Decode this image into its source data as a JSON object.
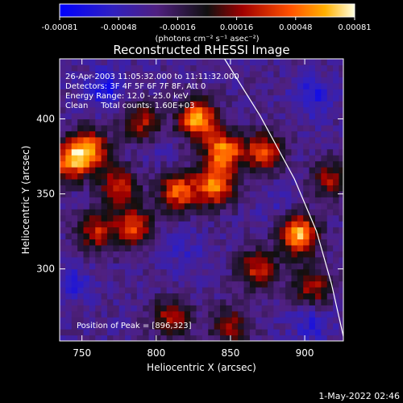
{
  "chart_data": {
    "type": "heatmap",
    "title": "Reconstructed RHESSI Image",
    "xlabel": "Heliocentric X (arcsec)",
    "ylabel": "Heliocentric Y (arcsec)",
    "xlim": [
      735,
      926
    ],
    "ylim": [
      252,
      440
    ],
    "x_ticks": [
      750,
      800,
      850,
      900
    ],
    "y_ticks": [
      300,
      350,
      400
    ],
    "colorbar": {
      "min": -0.00081,
      "max": 0.00081,
      "tick_labels": [
        "-0.00081",
        "-0.00048",
        "-0.00016",
        "0.00016",
        "0.00048",
        "0.00081"
      ],
      "units_label": "(photons cm⁻² s⁻¹ asec⁻²)"
    },
    "annotations": [
      "26-Apr-2003 11:05:32.000 to 11:11:32.000",
      "Detectors: 3F 4F 5F 6F 7F 8F, Att 0",
      "Energy Range: 12.0 - 25.0 keV",
      "Clean     Total counts: 1.60E+03"
    ],
    "peak_label": "Position of Peak = [896,323]",
    "peak": {
      "x": 896,
      "y": 323,
      "value": 0.00081
    },
    "bright_regions": [
      {
        "x": 896,
        "y": 323,
        "value": 0.00081
      },
      {
        "x": 828,
        "y": 400,
        "value": 0.00074
      },
      {
        "x": 845,
        "y": 378,
        "value": 0.00068
      },
      {
        "x": 840,
        "y": 355,
        "value": 0.0006
      },
      {
        "x": 815,
        "y": 352,
        "value": 0.00055
      },
      {
        "x": 755,
        "y": 380,
        "value": 0.00062
      },
      {
        "x": 742,
        "y": 372,
        "value": 0.00052
      },
      {
        "x": 785,
        "y": 328,
        "value": 0.00042
      },
      {
        "x": 760,
        "y": 325,
        "value": 0.00035
      },
      {
        "x": 872,
        "y": 378,
        "value": 0.00045
      },
      {
        "x": 868,
        "y": 300,
        "value": 0.00038
      },
      {
        "x": 905,
        "y": 288,
        "value": 0.00032
      },
      {
        "x": 810,
        "y": 268,
        "value": 0.00028
      },
      {
        "x": 850,
        "y": 262,
        "value": 0.00022
      },
      {
        "x": 790,
        "y": 398,
        "value": 0.0003
      },
      {
        "x": 775,
        "y": 355,
        "value": 0.00038
      },
      {
        "x": 918,
        "y": 360,
        "value": 0.00026
      }
    ],
    "dark_regions": [
      {
        "x": 765,
        "y": 420,
        "value": -0.0007
      },
      {
        "x": 905,
        "y": 415,
        "value": -0.00065
      },
      {
        "x": 905,
        "y": 265,
        "value": -0.0006
      },
      {
        "x": 745,
        "y": 290,
        "value": -0.00055
      },
      {
        "x": 820,
        "y": 310,
        "value": -0.0005
      },
      {
        "x": 880,
        "y": 340,
        "value": -0.00045
      },
      {
        "x": 800,
        "y": 380,
        "value": -0.0004
      }
    ],
    "limb_curve": [
      [
        846,
        440
      ],
      [
        870,
        402
      ],
      [
        893,
        360
      ],
      [
        908,
        325
      ],
      [
        918,
        290
      ],
      [
        926,
        255
      ]
    ],
    "grid": false
  },
  "footer": {
    "date": "1-May-2022 02:46"
  }
}
